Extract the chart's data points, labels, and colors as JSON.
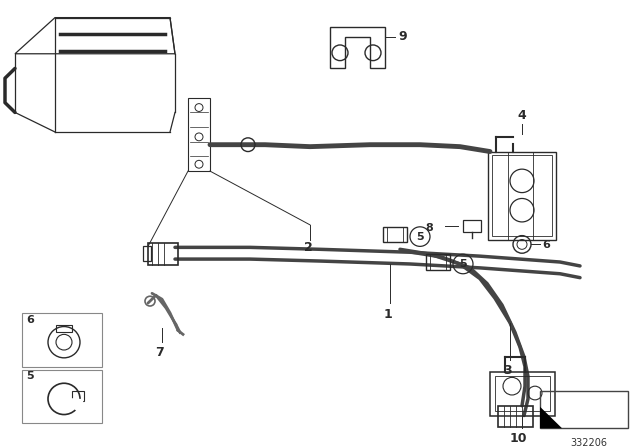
{
  "bg_color": "#ffffff",
  "line_color": "#2a2a2a",
  "part_number": "332206",
  "fig_width": 6.4,
  "fig_height": 4.48,
  "dpi": 100,
  "hose_color": "#444444",
  "part_color": "#555555"
}
